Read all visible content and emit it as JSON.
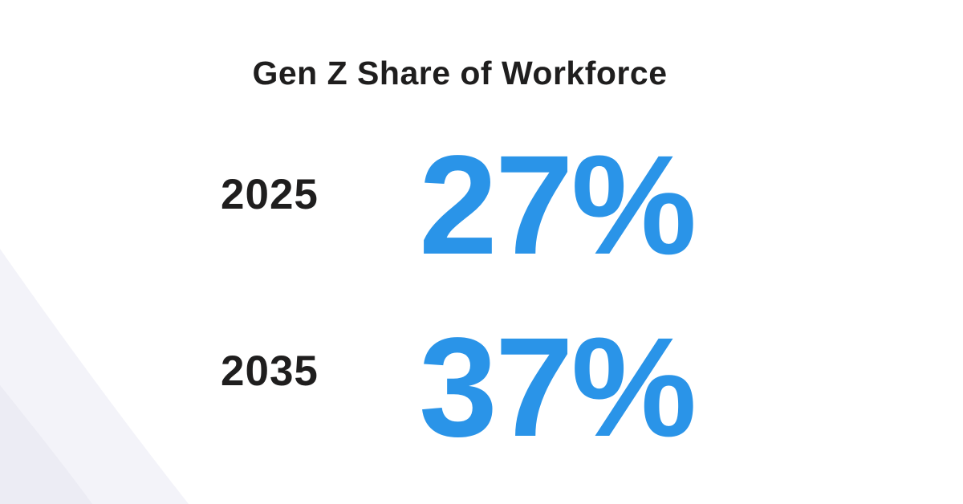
{
  "title": "Gen Z Share of Workforce",
  "rows": [
    {
      "year": "2025",
      "share": "27%"
    },
    {
      "year": "2035",
      "share": "37%"
    }
  ],
  "colors": {
    "title": "#1f1e1e",
    "year": "#1f1e1e",
    "share": "#2a94e8",
    "background": "#ffffff",
    "background_shape": "#f1f2f9"
  }
}
